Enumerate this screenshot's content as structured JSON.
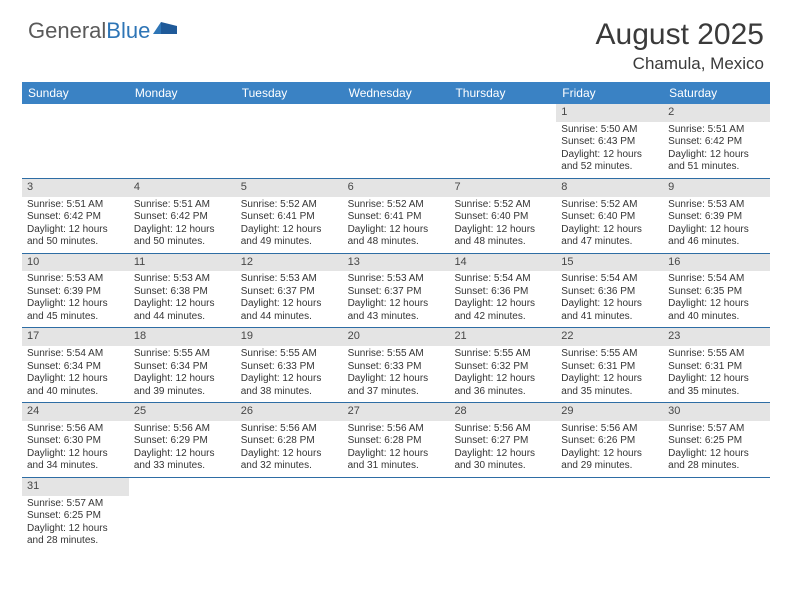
{
  "logo": {
    "text1": "General",
    "text2": "Blue"
  },
  "title": "August 2025",
  "location": "Chamula, Mexico",
  "weekdays": [
    "Sunday",
    "Monday",
    "Tuesday",
    "Wednesday",
    "Thursday",
    "Friday",
    "Saturday"
  ],
  "colors": {
    "header_bg": "#3a82c4",
    "divider": "#2e6da4",
    "day_header_bg": "#e4e4e4",
    "text": "#353535"
  },
  "weeks": [
    [
      null,
      null,
      null,
      null,
      null,
      {
        "n": "1",
        "sr": "Sunrise: 5:50 AM",
        "ss": "Sunset: 6:43 PM",
        "d1": "Daylight: 12 hours",
        "d2": "and 52 minutes."
      },
      {
        "n": "2",
        "sr": "Sunrise: 5:51 AM",
        "ss": "Sunset: 6:42 PM",
        "d1": "Daylight: 12 hours",
        "d2": "and 51 minutes."
      }
    ],
    [
      {
        "n": "3",
        "sr": "Sunrise: 5:51 AM",
        "ss": "Sunset: 6:42 PM",
        "d1": "Daylight: 12 hours",
        "d2": "and 50 minutes."
      },
      {
        "n": "4",
        "sr": "Sunrise: 5:51 AM",
        "ss": "Sunset: 6:42 PM",
        "d1": "Daylight: 12 hours",
        "d2": "and 50 minutes."
      },
      {
        "n": "5",
        "sr": "Sunrise: 5:52 AM",
        "ss": "Sunset: 6:41 PM",
        "d1": "Daylight: 12 hours",
        "d2": "and 49 minutes."
      },
      {
        "n": "6",
        "sr": "Sunrise: 5:52 AM",
        "ss": "Sunset: 6:41 PM",
        "d1": "Daylight: 12 hours",
        "d2": "and 48 minutes."
      },
      {
        "n": "7",
        "sr": "Sunrise: 5:52 AM",
        "ss": "Sunset: 6:40 PM",
        "d1": "Daylight: 12 hours",
        "d2": "and 48 minutes."
      },
      {
        "n": "8",
        "sr": "Sunrise: 5:52 AM",
        "ss": "Sunset: 6:40 PM",
        "d1": "Daylight: 12 hours",
        "d2": "and 47 minutes."
      },
      {
        "n": "9",
        "sr": "Sunrise: 5:53 AM",
        "ss": "Sunset: 6:39 PM",
        "d1": "Daylight: 12 hours",
        "d2": "and 46 minutes."
      }
    ],
    [
      {
        "n": "10",
        "sr": "Sunrise: 5:53 AM",
        "ss": "Sunset: 6:39 PM",
        "d1": "Daylight: 12 hours",
        "d2": "and 45 minutes."
      },
      {
        "n": "11",
        "sr": "Sunrise: 5:53 AM",
        "ss": "Sunset: 6:38 PM",
        "d1": "Daylight: 12 hours",
        "d2": "and 44 minutes."
      },
      {
        "n": "12",
        "sr": "Sunrise: 5:53 AM",
        "ss": "Sunset: 6:37 PM",
        "d1": "Daylight: 12 hours",
        "d2": "and 44 minutes."
      },
      {
        "n": "13",
        "sr": "Sunrise: 5:53 AM",
        "ss": "Sunset: 6:37 PM",
        "d1": "Daylight: 12 hours",
        "d2": "and 43 minutes."
      },
      {
        "n": "14",
        "sr": "Sunrise: 5:54 AM",
        "ss": "Sunset: 6:36 PM",
        "d1": "Daylight: 12 hours",
        "d2": "and 42 minutes."
      },
      {
        "n": "15",
        "sr": "Sunrise: 5:54 AM",
        "ss": "Sunset: 6:36 PM",
        "d1": "Daylight: 12 hours",
        "d2": "and 41 minutes."
      },
      {
        "n": "16",
        "sr": "Sunrise: 5:54 AM",
        "ss": "Sunset: 6:35 PM",
        "d1": "Daylight: 12 hours",
        "d2": "and 40 minutes."
      }
    ],
    [
      {
        "n": "17",
        "sr": "Sunrise: 5:54 AM",
        "ss": "Sunset: 6:34 PM",
        "d1": "Daylight: 12 hours",
        "d2": "and 40 minutes."
      },
      {
        "n": "18",
        "sr": "Sunrise: 5:55 AM",
        "ss": "Sunset: 6:34 PM",
        "d1": "Daylight: 12 hours",
        "d2": "and 39 minutes."
      },
      {
        "n": "19",
        "sr": "Sunrise: 5:55 AM",
        "ss": "Sunset: 6:33 PM",
        "d1": "Daylight: 12 hours",
        "d2": "and 38 minutes."
      },
      {
        "n": "20",
        "sr": "Sunrise: 5:55 AM",
        "ss": "Sunset: 6:33 PM",
        "d1": "Daylight: 12 hours",
        "d2": "and 37 minutes."
      },
      {
        "n": "21",
        "sr": "Sunrise: 5:55 AM",
        "ss": "Sunset: 6:32 PM",
        "d1": "Daylight: 12 hours",
        "d2": "and 36 minutes."
      },
      {
        "n": "22",
        "sr": "Sunrise: 5:55 AM",
        "ss": "Sunset: 6:31 PM",
        "d1": "Daylight: 12 hours",
        "d2": "and 35 minutes."
      },
      {
        "n": "23",
        "sr": "Sunrise: 5:55 AM",
        "ss": "Sunset: 6:31 PM",
        "d1": "Daylight: 12 hours",
        "d2": "and 35 minutes."
      }
    ],
    [
      {
        "n": "24",
        "sr": "Sunrise: 5:56 AM",
        "ss": "Sunset: 6:30 PM",
        "d1": "Daylight: 12 hours",
        "d2": "and 34 minutes."
      },
      {
        "n": "25",
        "sr": "Sunrise: 5:56 AM",
        "ss": "Sunset: 6:29 PM",
        "d1": "Daylight: 12 hours",
        "d2": "and 33 minutes."
      },
      {
        "n": "26",
        "sr": "Sunrise: 5:56 AM",
        "ss": "Sunset: 6:28 PM",
        "d1": "Daylight: 12 hours",
        "d2": "and 32 minutes."
      },
      {
        "n": "27",
        "sr": "Sunrise: 5:56 AM",
        "ss": "Sunset: 6:28 PM",
        "d1": "Daylight: 12 hours",
        "d2": "and 31 minutes."
      },
      {
        "n": "28",
        "sr": "Sunrise: 5:56 AM",
        "ss": "Sunset: 6:27 PM",
        "d1": "Daylight: 12 hours",
        "d2": "and 30 minutes."
      },
      {
        "n": "29",
        "sr": "Sunrise: 5:56 AM",
        "ss": "Sunset: 6:26 PM",
        "d1": "Daylight: 12 hours",
        "d2": "and 29 minutes."
      },
      {
        "n": "30",
        "sr": "Sunrise: 5:57 AM",
        "ss": "Sunset: 6:25 PM",
        "d1": "Daylight: 12 hours",
        "d2": "and 28 minutes."
      }
    ],
    [
      {
        "n": "31",
        "sr": "Sunrise: 5:57 AM",
        "ss": "Sunset: 6:25 PM",
        "d1": "Daylight: 12 hours",
        "d2": "and 28 minutes."
      },
      null,
      null,
      null,
      null,
      null,
      null
    ]
  ]
}
